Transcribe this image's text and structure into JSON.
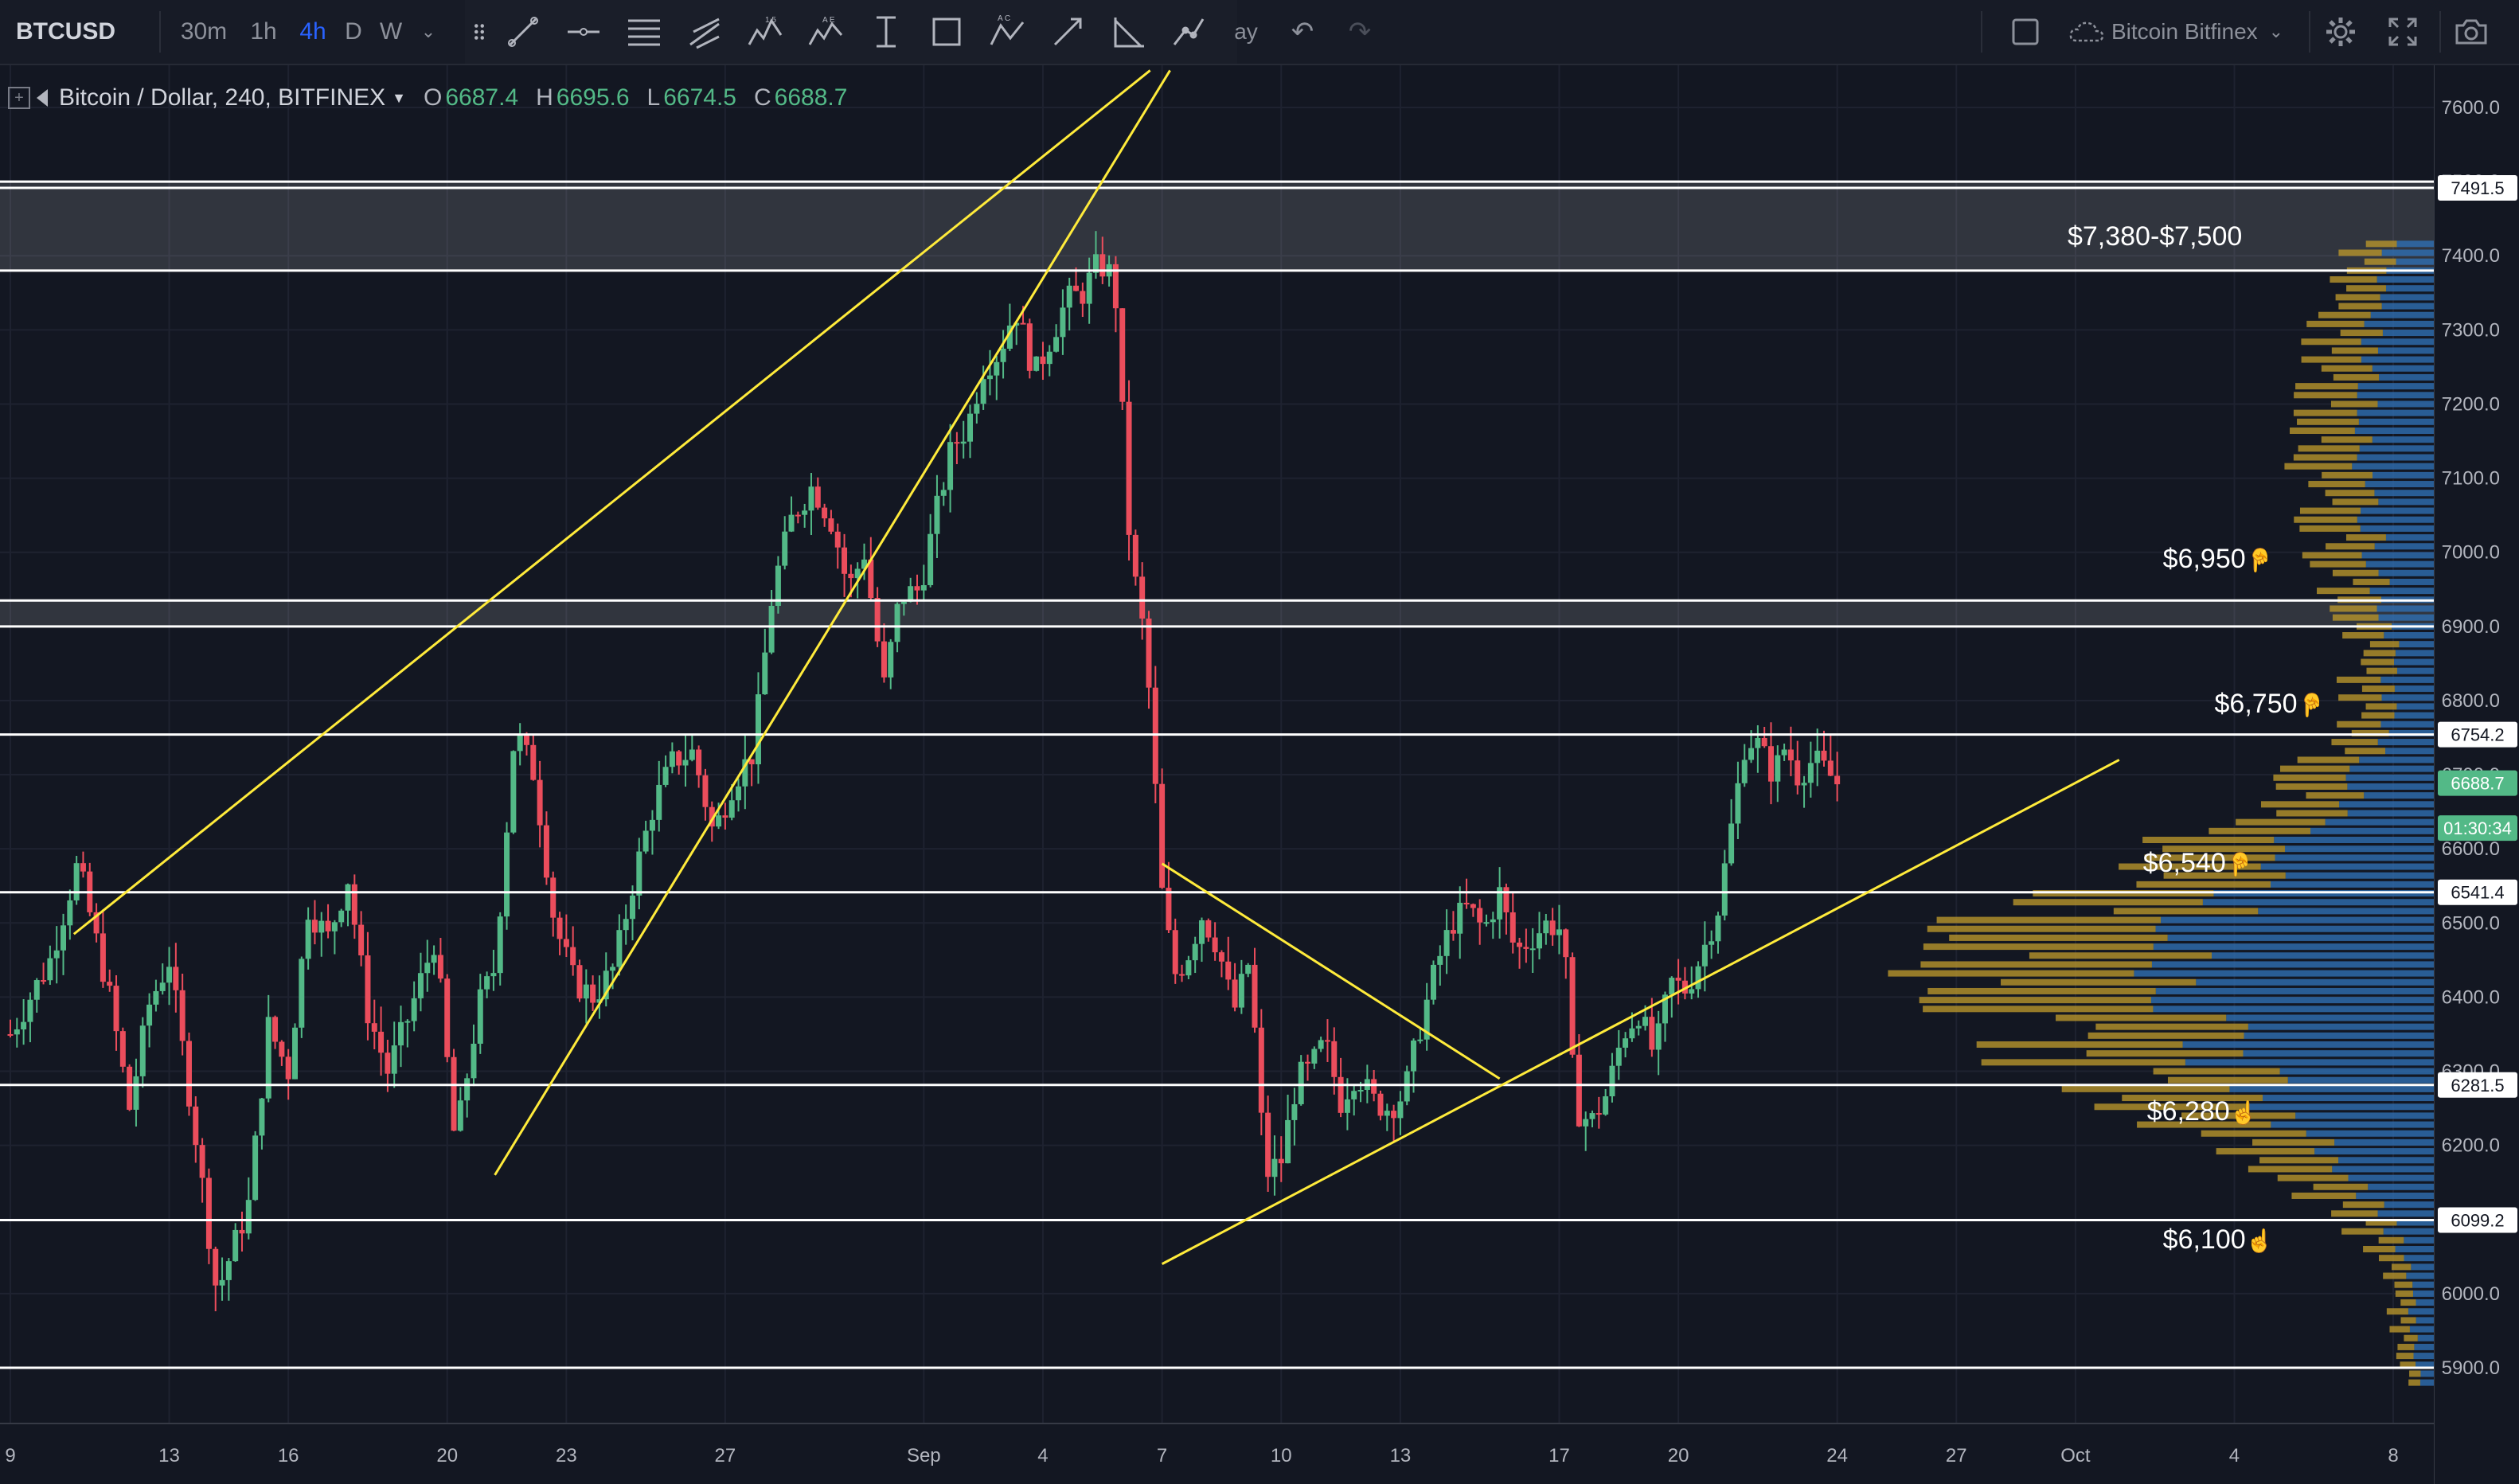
{
  "toolbar": {
    "symbol": "BTCUSD",
    "intervals": [
      "30m",
      "1h",
      "4h",
      "D",
      "W"
    ],
    "active_interval": "4h",
    "partial_label": "ay",
    "datasource": "Bitcoin Bitfinex"
  },
  "legend": {
    "title": "Bitcoin / Dollar, 240, BITFINEX",
    "open_label": "O",
    "open": "6687.4",
    "high_label": "H",
    "high": "6695.6",
    "low_label": "L",
    "low": "6674.5",
    "close_label": "C",
    "close": "6688.7"
  },
  "colors": {
    "background": "#131722",
    "up": "#53b987",
    "down": "#eb4d5c",
    "trendline": "#ffeb3b",
    "level": "#ffffff",
    "volume_up": "#2f6fb3",
    "volume_down": "#b8952c"
  },
  "chart_data": {
    "type": "candlestick",
    "title": "Bitcoin / Dollar, 240, BITFINEX",
    "y_axis_ticks": [
      5900,
      6000,
      6100,
      6200,
      6300,
      6400,
      6500,
      6600,
      6700,
      6800,
      6900,
      7000,
      7100,
      7200,
      7300,
      7400,
      7500,
      7600
    ],
    "y_axis_tick_labels": [
      "5900.0",
      "6000.0",
      "6100.0",
      "6200.0",
      "6300.0",
      "6400.0",
      "6500.0",
      "6600.0",
      "6700.0",
      "6800.0",
      "6900.0",
      "7000.0",
      "7100.0",
      "7200.0",
      "7300.0",
      "7400.0",
      "7500.0",
      "7600.0"
    ],
    "ylim": [
      5840,
      7650
    ],
    "x_axis_labels": [
      "9",
      "13",
      "16",
      "20",
      "23",
      "27",
      "Sep",
      "4",
      "7",
      "10",
      "13",
      "17",
      "20",
      "24",
      "27",
      "Oct",
      "4",
      "8"
    ],
    "x_axis_label_days": [
      -23,
      -19,
      -16,
      -12,
      -9,
      -5,
      0,
      3,
      6,
      9,
      12,
      16,
      19,
      23,
      26,
      29,
      33,
      37
    ],
    "xlim_days": [
      -23.2,
      37.6
    ],
    "last_bar_day": 23,
    "price_path": [
      [
        -23,
        6350
      ],
      [
        -22,
        6450
      ],
      [
        -21.3,
        6580
      ],
      [
        -20.5,
        6400
      ],
      [
        -20,
        6250
      ],
      [
        -19.5,
        6390
      ],
      [
        -19,
        6450
      ],
      [
        -18.3,
        6200
      ],
      [
        -17.8,
        6000
      ],
      [
        -17,
        6120
      ],
      [
        -16.5,
        6360
      ],
      [
        -16,
        6300
      ],
      [
        -15.5,
        6520
      ],
      [
        -15,
        6480
      ],
      [
        -14.5,
        6560
      ],
      [
        -14,
        6380
      ],
      [
        -13.5,
        6300
      ],
      [
        -13,
        6370
      ],
      [
        -12.3,
        6480
      ],
      [
        -11.8,
        6200
      ],
      [
        -11.2,
        6390
      ],
      [
        -10.8,
        6440
      ],
      [
        -10.3,
        6760
      ],
      [
        -9.8,
        6700
      ],
      [
        -9.3,
        6500
      ],
      [
        -8.8,
        6420
      ],
      [
        -8.3,
        6400
      ],
      [
        -7.8,
        6440
      ],
      [
        -7.3,
        6560
      ],
      [
        -6.8,
        6660
      ],
      [
        -6.3,
        6720
      ],
      [
        -5.8,
        6730
      ],
      [
        -5.3,
        6620
      ],
      [
        -4.8,
        6690
      ],
      [
        -4.3,
        6730
      ],
      [
        -3.8,
        6950
      ],
      [
        -3.3,
        7050
      ],
      [
        -2.8,
        7090
      ],
      [
        -2.3,
        7040
      ],
      [
        -1.9,
        6950
      ],
      [
        -1.5,
        7000
      ],
      [
        -1,
        6820
      ],
      [
        -0.6,
        6940
      ],
      [
        -0.1,
        6950
      ],
      [
        0.3,
        7050
      ],
      [
        0.7,
        7140
      ],
      [
        1.1,
        7170
      ],
      [
        1.5,
        7250
      ],
      [
        1.9,
        7270
      ],
      [
        2.3,
        7330
      ],
      [
        2.8,
        7240
      ],
      [
        3.2,
        7290
      ],
      [
        3.6,
        7340
      ],
      [
        4.0,
        7350
      ],
      [
        4.4,
        7390
      ],
      [
        4.8,
        7370
      ],
      [
        5.2,
        7000
      ],
      [
        5.6,
        6870
      ],
      [
        6.0,
        6540
      ],
      [
        6.3,
        6430
      ],
      [
        6.6,
        6450
      ],
      [
        7.0,
        6510
      ],
      [
        7.4,
        6470
      ],
      [
        7.8,
        6380
      ],
      [
        8.2,
        6450
      ],
      [
        8.6,
        6160
      ],
      [
        9.0,
        6180
      ],
      [
        9.4,
        6290
      ],
      [
        9.7,
        6300
      ],
      [
        10.1,
        6340
      ],
      [
        10.5,
        6260
      ],
      [
        10.9,
        6300
      ],
      [
        11.3,
        6260
      ],
      [
        11.7,
        6250
      ],
      [
        12.1,
        6270
      ],
      [
        12.5,
        6360
      ],
      [
        12.9,
        6440
      ],
      [
        13.3,
        6500
      ],
      [
        13.7,
        6520
      ],
      [
        14.1,
        6490
      ],
      [
        14.5,
        6540
      ],
      [
        14.9,
        6460
      ],
      [
        15.3,
        6480
      ],
      [
        15.7,
        6500
      ],
      [
        16.1,
        6490
      ],
      [
        16.4,
        6250
      ],
      [
        16.8,
        6230
      ],
      [
        17.2,
        6270
      ],
      [
        17.6,
        6350
      ],
      [
        18.0,
        6380
      ],
      [
        18.4,
        6320
      ],
      [
        18.8,
        6420
      ],
      [
        19.2,
        6410
      ],
      [
        19.6,
        6460
      ],
      [
        20.0,
        6520
      ],
      [
        20.4,
        6650
      ],
      [
        20.7,
        6750
      ],
      [
        21.0,
        6740
      ],
      [
        21.4,
        6700
      ],
      [
        21.7,
        6740
      ],
      [
        22.0,
        6700
      ],
      [
        22.4,
        6720
      ],
      [
        22.8,
        6700
      ],
      [
        23.0,
        6688.7
      ]
    ],
    "horizontal_levels": [
      5900,
      6099.2,
      6281.5,
      6541.4,
      6754.2,
      6900,
      6935,
      7380,
      7491.5,
      7500
    ],
    "zones": [
      {
        "from": 7380,
        "to": 7500
      },
      {
        "from": 6900,
        "to": 6935
      }
    ],
    "level_annotations": [
      {
        "text": "$7,380-$7,500",
        "price": 7425,
        "day": 28.8
      },
      {
        "text": "$6,950",
        "price": 6990,
        "day": 31.2
      },
      {
        "text": "$6,750",
        "price": 6795,
        "day": 32.5
      },
      {
        "text": "$6,540",
        "price": 6580,
        "day": 30.7
      },
      {
        "text": "$6,280",
        "price": 6245,
        "day": 30.8
      },
      {
        "text": "$6,100",
        "price": 6072,
        "day": 31.2
      }
    ],
    "annotation_pointer": "☝",
    "price_tags": [
      {
        "text": "7491.5",
        "price": 7491.5,
        "bg": "#ffffff",
        "fg": "#131722"
      },
      {
        "text": "6754.2",
        "price": 6754.2,
        "bg": "#ffffff",
        "fg": "#131722"
      },
      {
        "text": "6688.7",
        "price": 6688.7,
        "bg": "#53b987",
        "fg": "#ffffff"
      },
      {
        "text": "01:30:34",
        "price": 6628,
        "bg": "#53b987",
        "fg": "#ffffff"
      },
      {
        "text": "6541.4",
        "price": 6541.4,
        "bg": "#ffffff",
        "fg": "#131722"
      },
      {
        "text": "6281.5",
        "price": 6281.5,
        "bg": "#ffffff",
        "fg": "#131722"
      },
      {
        "text": "6099.2",
        "price": 6099.2,
        "bg": "#ffffff",
        "fg": "#131722"
      }
    ],
    "trendlines": [
      {
        "from": [
          -21.4,
          6485
        ],
        "to": [
          5.7,
          7650
        ]
      },
      {
        "from": [
          -10.8,
          6160
        ],
        "to": [
          6.2,
          7650
        ]
      },
      {
        "from": [
          6.0,
          6580
        ],
        "to": [
          14.5,
          6290
        ]
      },
      {
        "from": [
          6.0,
          6040
        ],
        "to": [
          30.1,
          6720
        ]
      }
    ]
  }
}
